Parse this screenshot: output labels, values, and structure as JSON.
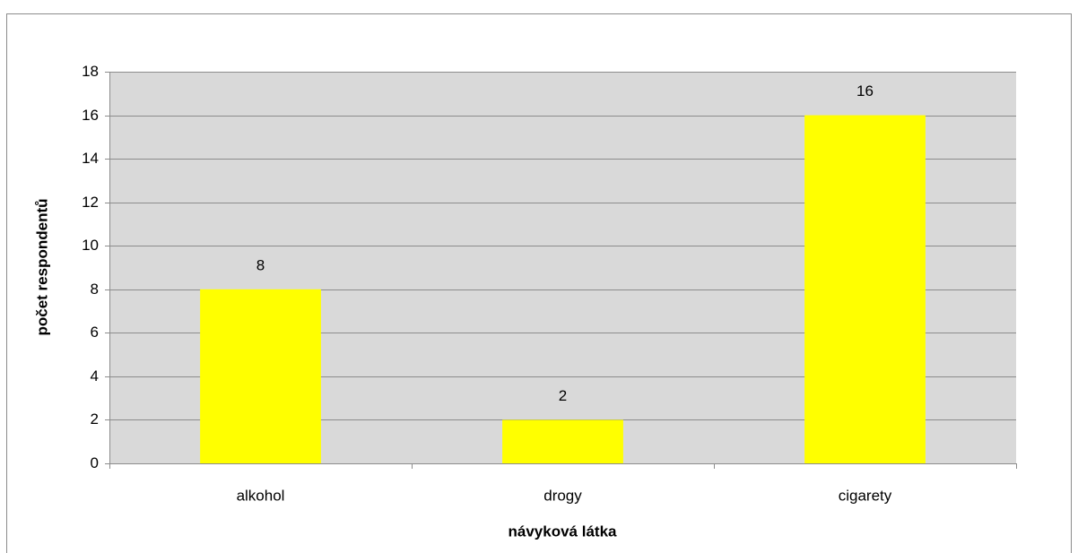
{
  "chart_data": {
    "type": "bar",
    "categories": [
      "alkohol",
      "drogy",
      "cigarety"
    ],
    "values": [
      8,
      2,
      16
    ],
    "color": "#ffff00",
    "ylim": [
      0,
      18
    ],
    "yticks": [
      0,
      2,
      4,
      6,
      8,
      10,
      12,
      14,
      16,
      18
    ],
    "grid": true,
    "xlabel": "návyková látka",
    "ylabel": "počet respondentů"
  }
}
